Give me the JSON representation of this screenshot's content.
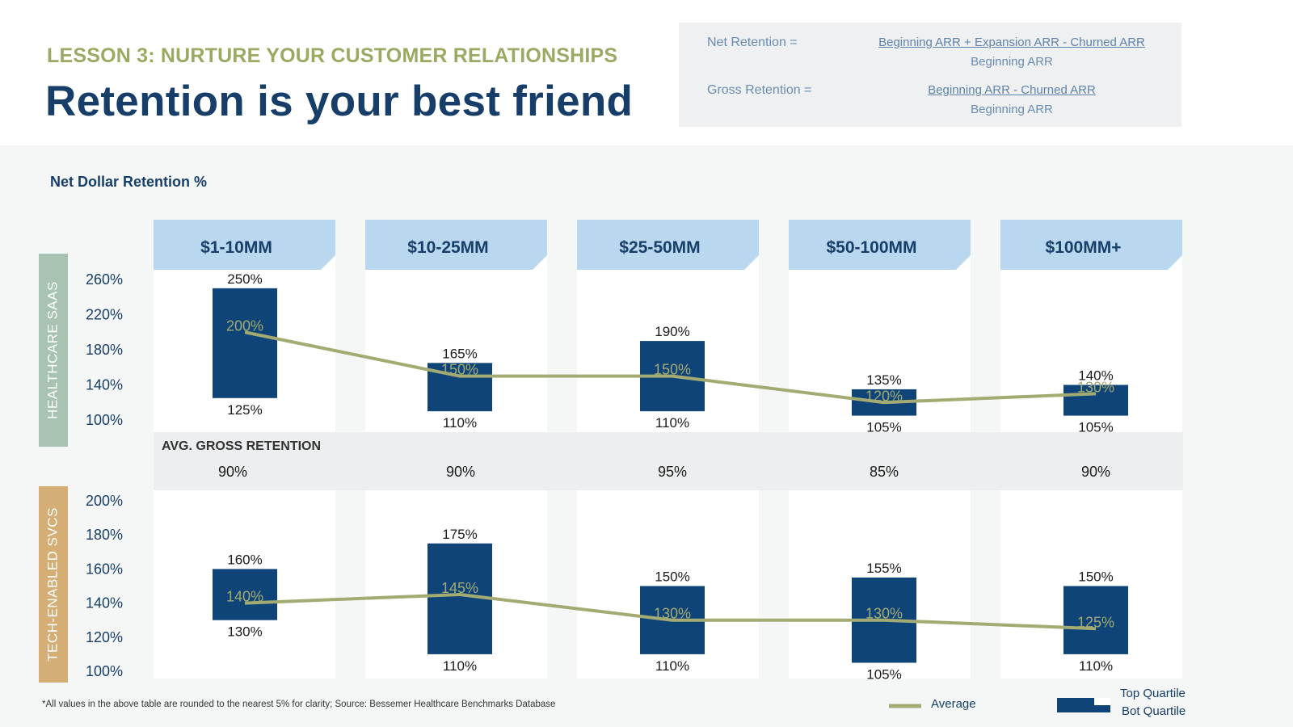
{
  "header": {
    "lesson": "LESSON 3: NURTURE YOUR CUSTOMER RELATIONSHIPS",
    "title": "Retention is your best friend"
  },
  "formulas": {
    "net_label": "Net Retention =",
    "net_numerator": "Beginning ARR + Expansion ARR - Churned ARR",
    "net_denominator": "Beginning ARR",
    "gross_label": "Gross Retention =",
    "gross_numerator": "Beginning ARR - Churned ARR",
    "gross_denominator": "Beginning ARR"
  },
  "subtitle": "Net Dollar Retention %",
  "footnote": "*All values in the above table are rounded to the nearest 5% for clarity; Source: Bessemer Healthcare Benchmarks Database",
  "legend": {
    "average": "Average",
    "top": "Top Quartile",
    "bot": "Bot Quartile"
  },
  "colors": {
    "bar": "#0f4478",
    "average_line": "#a3ab73",
    "header_tab": "#b9d7ee",
    "healthcare_label_bg": "#a9c3b3",
    "tech_label_bg": "#d4ae74",
    "gross_row_bg": "#edeeef"
  },
  "gross_retention": {
    "label": "AVG. GROSS RETENTION",
    "values": [
      "90%",
      "90%",
      "95%",
      "85%",
      "90%"
    ]
  },
  "chart_data": [
    {
      "type": "bar",
      "name": "HEALTHCARE SAAS",
      "categories": [
        "$1-10MM",
        "$10-25MM",
        "$25-50MM",
        "$50-100MM",
        "$100MM+"
      ],
      "ylim": [
        100,
        260
      ],
      "yticks": [
        100,
        140,
        180,
        220,
        260
      ],
      "tick_labels": [
        "100%",
        "140%",
        "180%",
        "220%",
        "260%"
      ],
      "top_quartile": [
        250,
        165,
        190,
        135,
        140
      ],
      "bot_quartile": [
        125,
        110,
        110,
        105,
        105
      ],
      "average": [
        200,
        150,
        150,
        120,
        130
      ]
    },
    {
      "type": "bar",
      "name": "TECH-ENABLED SVCS",
      "categories": [
        "$1-10MM",
        "$10-25MM",
        "$25-50MM",
        "$50-100MM",
        "$100MM+"
      ],
      "ylim": [
        100,
        200
      ],
      "yticks": [
        100,
        120,
        140,
        160,
        180,
        200
      ],
      "tick_labels": [
        "100%",
        "120%",
        "140%",
        "160%",
        "180%",
        "200%"
      ],
      "top_quartile": [
        160,
        175,
        150,
        155,
        150
      ],
      "bot_quartile": [
        130,
        110,
        110,
        105,
        110
      ],
      "average": [
        140,
        145,
        130,
        130,
        125
      ]
    }
  ]
}
